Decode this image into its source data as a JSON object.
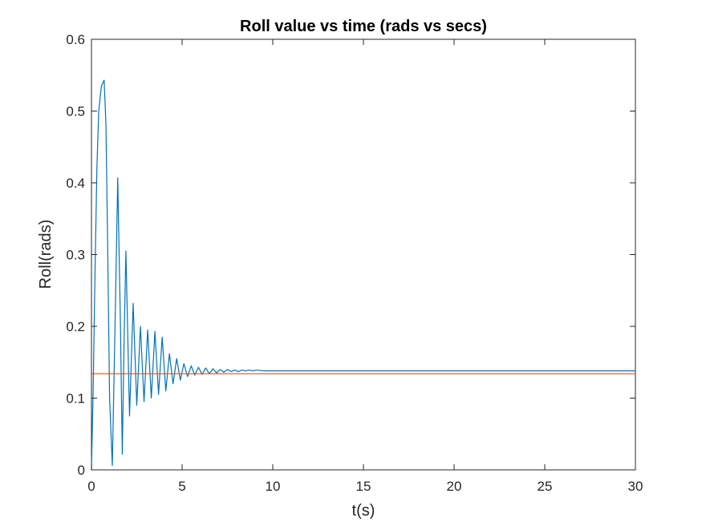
{
  "chart_data": {
    "type": "line",
    "title": "Roll value vs time (rads vs secs)",
    "xlabel": "t(s)",
    "ylabel": "Roll(rads)",
    "xlim": [
      0,
      30
    ],
    "ylim": [
      0,
      0.6
    ],
    "xticks": [
      0,
      5,
      10,
      15,
      20,
      25,
      30
    ],
    "yticks": [
      0,
      0.1,
      0.2,
      0.3,
      0.4,
      0.5,
      0.6
    ],
    "xtick_labels": [
      "0",
      "5",
      "10",
      "15",
      "20",
      "25",
      "30"
    ],
    "ytick_labels": [
      "0",
      "0.1",
      "0.2",
      "0.3",
      "0.4",
      "0.5",
      "0.6"
    ],
    "grid": false,
    "legend": "none",
    "series": [
      {
        "color": "#0072BD",
        "x": [
          0,
          0.1,
          0.2,
          0.3,
          0.4,
          0.55,
          0.7,
          0.8,
          0.9,
          1.0,
          1.15,
          1.3,
          1.45,
          1.6,
          1.7,
          1.8,
          1.9,
          2.1,
          2.3,
          2.5,
          2.7,
          2.9,
          3.1,
          3.3,
          3.5,
          3.7,
          3.9,
          4.1,
          4.3,
          4.5,
          4.7,
          4.9,
          5.1,
          5.3,
          5.5,
          5.7,
          5.9,
          6.1,
          6.3,
          6.5,
          6.7,
          6.9,
          7.1,
          7.3,
          7.5,
          7.7,
          7.9,
          8.1,
          8.3,
          8.5,
          8.7,
          8.9,
          9.1,
          9.5,
          10,
          11,
          12,
          15,
          20,
          25,
          30
        ],
        "y": [
          0,
          0.12,
          0.28,
          0.42,
          0.5,
          0.535,
          0.543,
          0.48,
          0.3,
          0.1,
          0.006,
          0.2,
          0.407,
          0.2,
          0.022,
          0.18,
          0.305,
          0.075,
          0.232,
          0.09,
          0.2,
          0.095,
          0.195,
          0.1,
          0.193,
          0.105,
          0.185,
          0.11,
          0.162,
          0.12,
          0.155,
          0.125,
          0.148,
          0.13,
          0.145,
          0.132,
          0.143,
          0.133,
          0.142,
          0.134,
          0.141,
          0.135,
          0.14,
          0.136,
          0.14,
          0.137,
          0.139,
          0.137,
          0.139,
          0.138,
          0.139,
          0.138,
          0.139,
          0.138,
          0.138,
          0.138,
          0.138,
          0.138,
          0.138,
          0.138,
          0.138
        ]
      },
      {
        "color": "#D95319",
        "x": [
          0,
          30
        ],
        "y": [
          0.134,
          0.134
        ]
      }
    ]
  }
}
